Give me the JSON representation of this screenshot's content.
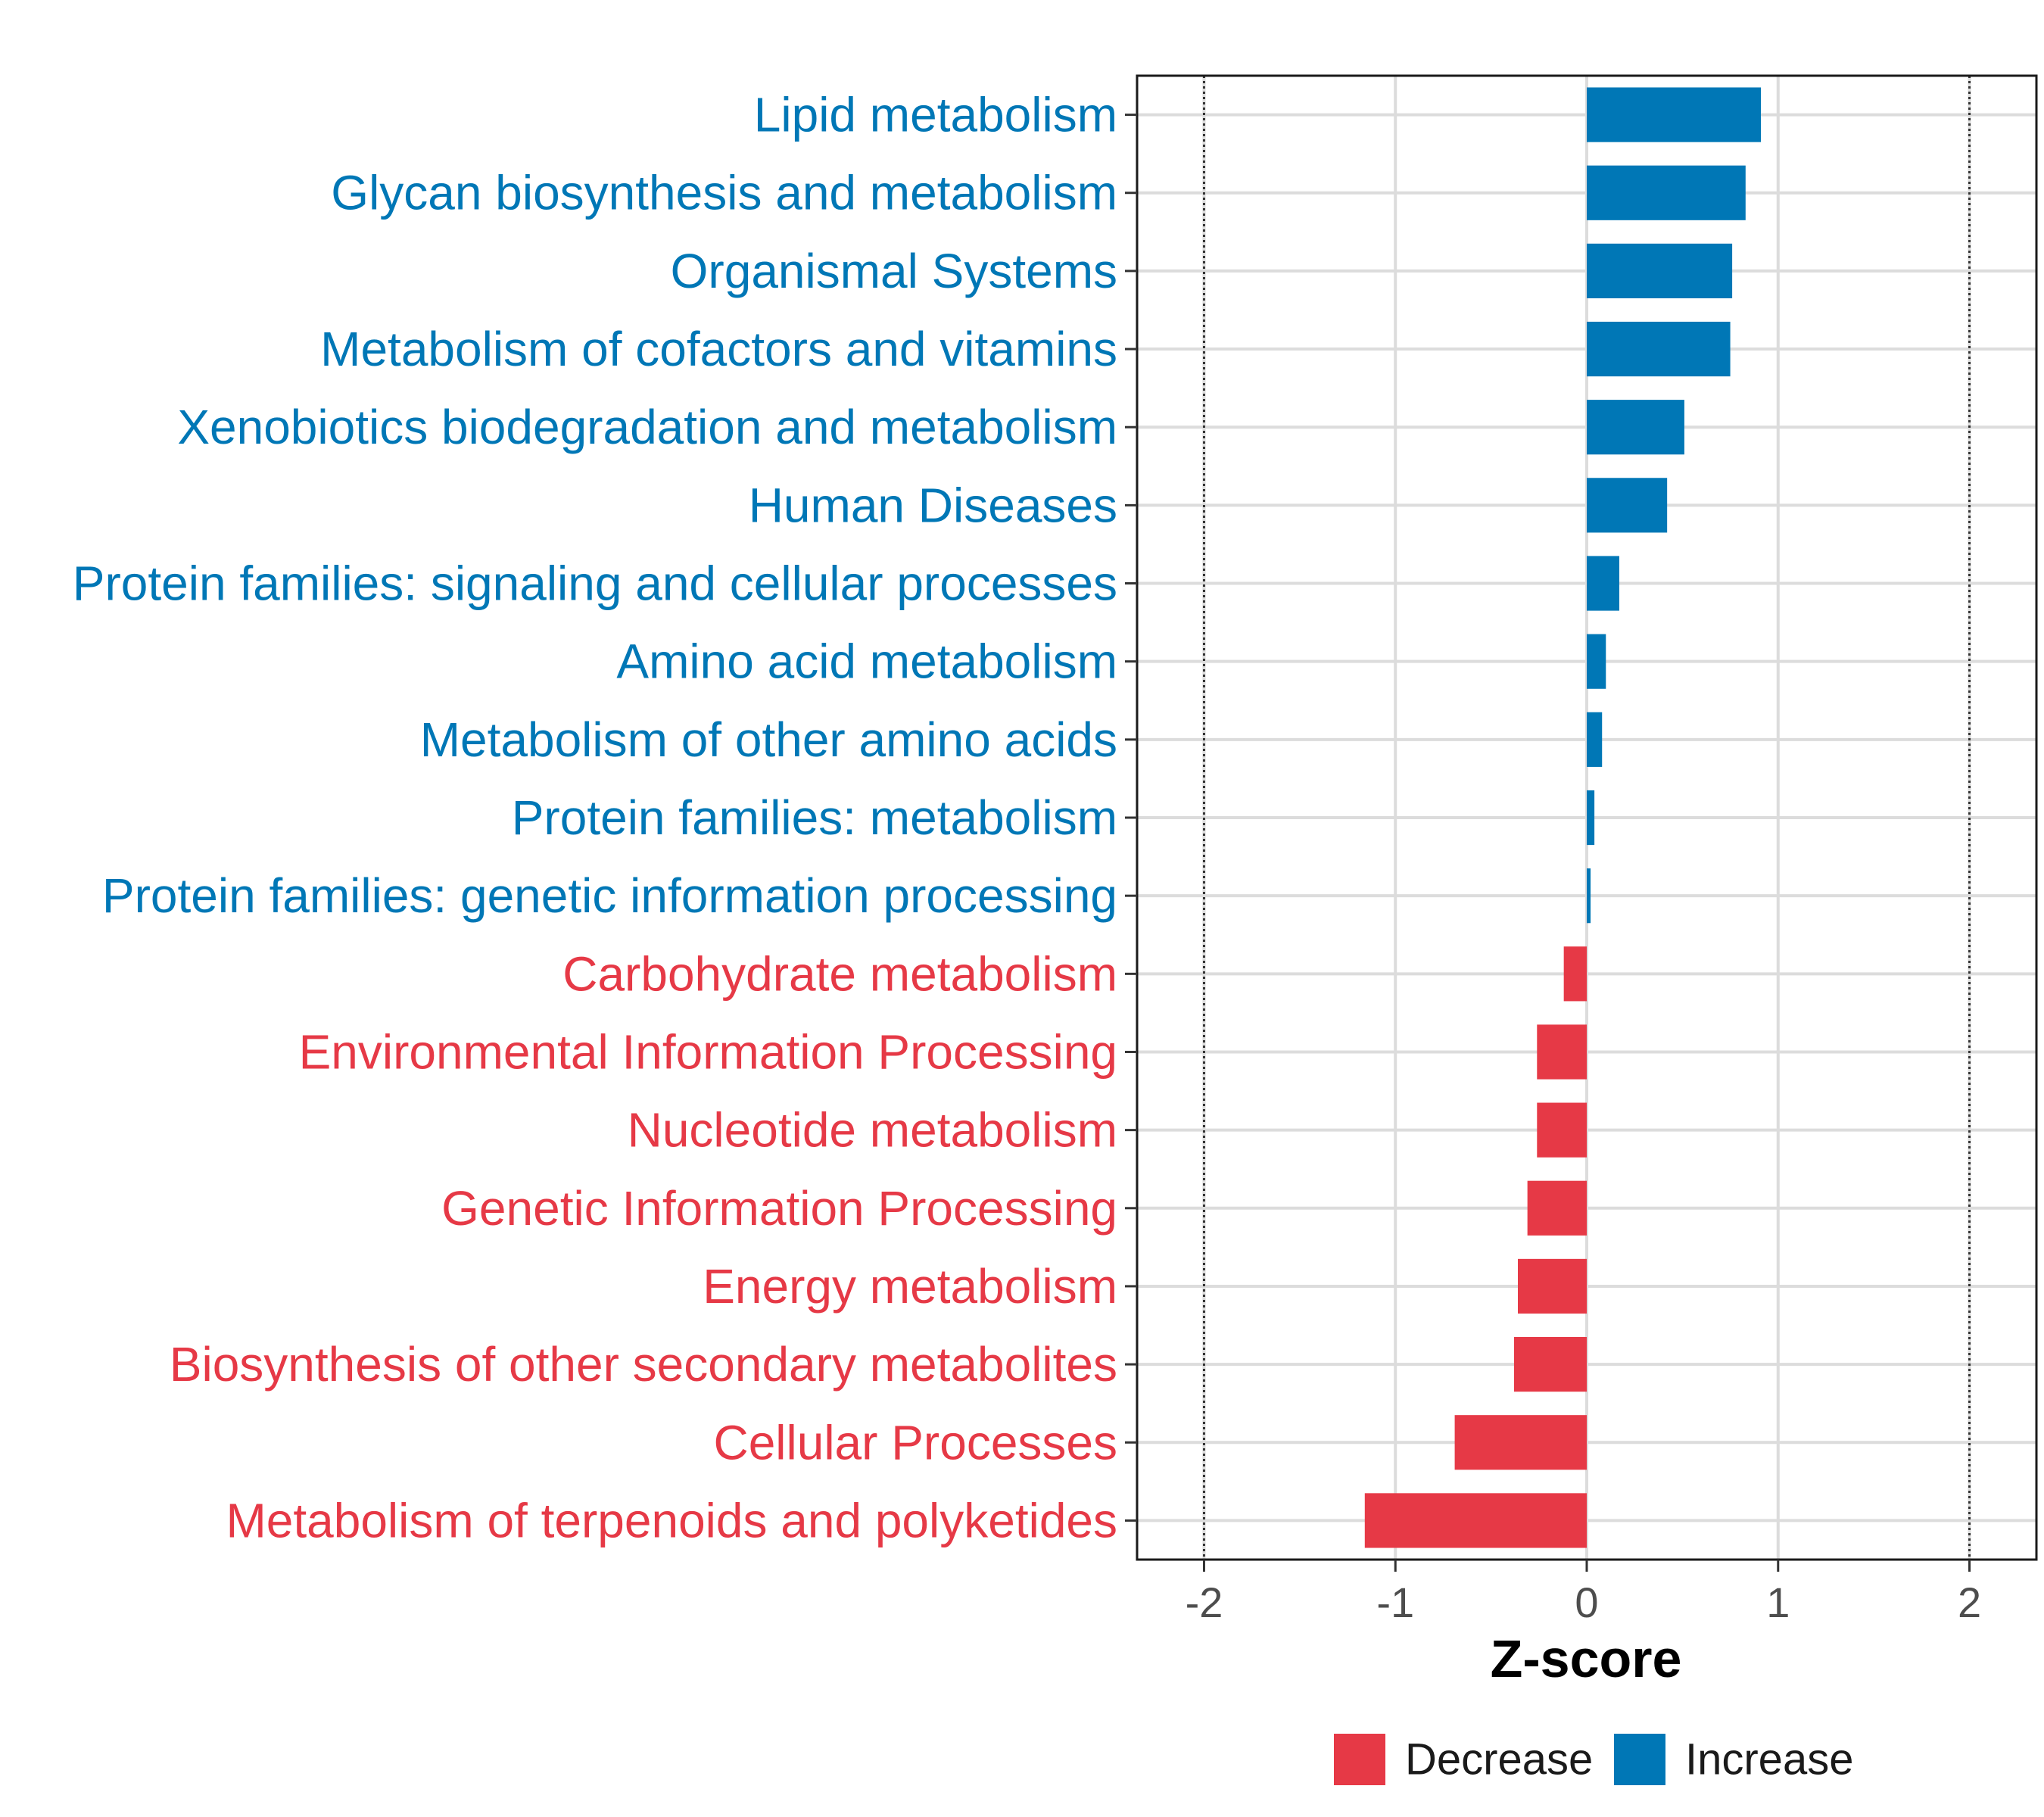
{
  "chart_data": {
    "type": "bar",
    "orientation": "horizontal",
    "title": "",
    "xlabel": "Z-score",
    "ylabel": "",
    "xlim": [
      -2.35,
      2.35
    ],
    "xticks": [
      -2,
      -1,
      0,
      1,
      2
    ],
    "xtick_labels": [
      "-2",
      "-1",
      "0",
      "1",
      "2"
    ],
    "reference_lines": [
      -2,
      2
    ],
    "grid": true,
    "colors": {
      "Increase": "#0077b6",
      "Decrease": "#e63946"
    },
    "categories": [
      "Lipid metabolism",
      "Glycan biosynthesis and metabolism",
      "Organismal Systems",
      "Metabolism of cofactors and vitamins",
      "Xenobiotics biodegradation and metabolism",
      "Human Diseases",
      "Protein families: signaling and cellular processes",
      "Amino acid metabolism",
      "Metabolism of other amino acids",
      "Protein families: metabolism",
      "Protein families: genetic information processing",
      "Carbohydrate metabolism",
      "Environmental Information Processing",
      "Nucleotide metabolism",
      "Genetic Information Processing",
      "Energy metabolism",
      "Biosynthesis of other secondary metabolites",
      "Cellular Processes",
      "Metabolism of terpenoids and polyketides"
    ],
    "values": [
      0.91,
      0.83,
      0.76,
      0.75,
      0.51,
      0.42,
      0.17,
      0.1,
      0.08,
      0.04,
      0.02,
      -0.12,
      -0.26,
      -0.26,
      -0.31,
      -0.36,
      -0.38,
      -0.69,
      -1.16
    ],
    "groups": [
      "Increase",
      "Increase",
      "Increase",
      "Increase",
      "Increase",
      "Increase",
      "Increase",
      "Increase",
      "Increase",
      "Increase",
      "Increase",
      "Decrease",
      "Decrease",
      "Decrease",
      "Decrease",
      "Decrease",
      "Decrease",
      "Decrease",
      "Decrease"
    ],
    "legend": {
      "position": "bottom",
      "entries": [
        {
          "label": "Decrease",
          "color": "#e63946"
        },
        {
          "label": "Increase",
          "color": "#0077b6"
        }
      ]
    }
  }
}
